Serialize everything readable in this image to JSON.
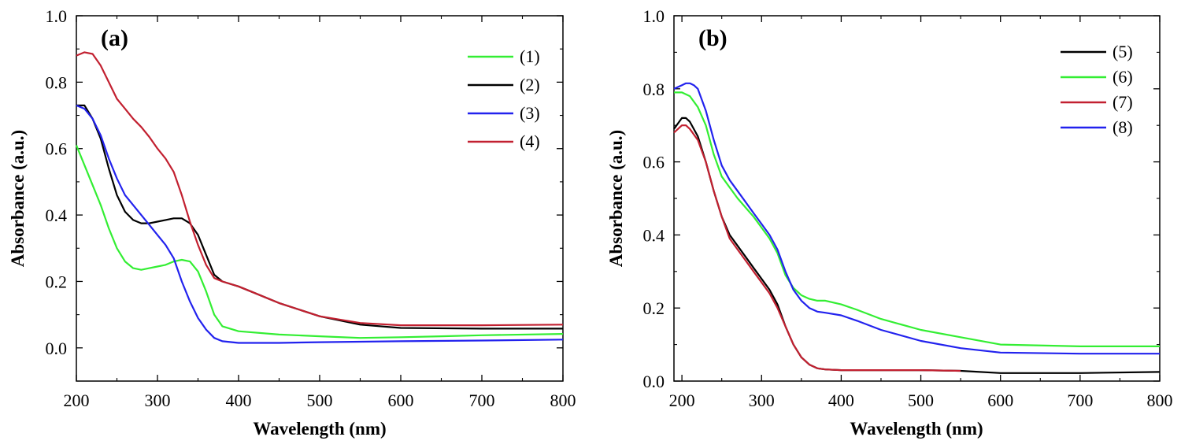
{
  "chart_data": [
    {
      "type": "line",
      "panel_label": "(a)",
      "xlabel": "Wavelength (nm)",
      "ylabel": "Absorbance (a.u.)",
      "xlim": [
        200,
        800
      ],
      "ylim": [
        -0.1,
        1.0
      ],
      "xticks": [
        "200",
        "300",
        "400",
        "500",
        "600",
        "700",
        "800"
      ],
      "yticks": [
        "0.0",
        "0.2",
        "0.4",
        "0.6",
        "0.8",
        "1.0"
      ],
      "legend_position": "top-right",
      "series": [
        {
          "name": "(1)",
          "color": "#33ee33",
          "x": [
            200,
            210,
            220,
            230,
            240,
            250,
            260,
            270,
            280,
            290,
            300,
            310,
            320,
            330,
            340,
            350,
            360,
            370,
            380,
            400,
            450,
            500,
            550,
            600,
            650,
            700,
            800
          ],
          "y": [
            0.61,
            0.55,
            0.49,
            0.43,
            0.36,
            0.3,
            0.26,
            0.24,
            0.235,
            0.24,
            0.245,
            0.25,
            0.26,
            0.265,
            0.26,
            0.23,
            0.17,
            0.1,
            0.065,
            0.05,
            0.04,
            0.035,
            0.03,
            0.032,
            0.035,
            0.038,
            0.042
          ]
        },
        {
          "name": "(2)",
          "color": "#000000",
          "x": [
            200,
            210,
            220,
            230,
            240,
            250,
            260,
            270,
            280,
            290,
            300,
            310,
            320,
            330,
            340,
            350,
            360,
            370,
            380,
            400,
            420,
            450,
            500,
            550,
            600,
            700,
            800
          ],
          "y": [
            0.73,
            0.73,
            0.69,
            0.63,
            0.54,
            0.46,
            0.41,
            0.385,
            0.375,
            0.375,
            0.38,
            0.385,
            0.39,
            0.39,
            0.375,
            0.34,
            0.28,
            0.22,
            0.2,
            0.185,
            0.165,
            0.135,
            0.095,
            0.07,
            0.06,
            0.058,
            0.058
          ]
        },
        {
          "name": "(3)",
          "color": "#2222ee",
          "x": [
            200,
            210,
            220,
            230,
            240,
            250,
            260,
            270,
            280,
            290,
            300,
            310,
            320,
            330,
            340,
            350,
            360,
            370,
            380,
            400,
            450,
            500,
            600,
            700,
            800
          ],
          "y": [
            0.73,
            0.72,
            0.69,
            0.64,
            0.57,
            0.51,
            0.46,
            0.43,
            0.4,
            0.37,
            0.34,
            0.31,
            0.27,
            0.2,
            0.14,
            0.09,
            0.055,
            0.03,
            0.02,
            0.015,
            0.015,
            0.017,
            0.02,
            0.022,
            0.025
          ]
        },
        {
          "name": "(4)",
          "color": "#c22030",
          "x": [
            200,
            205,
            210,
            220,
            230,
            240,
            250,
            260,
            270,
            280,
            290,
            300,
            310,
            320,
            330,
            340,
            350,
            360,
            370,
            380,
            400,
            420,
            450,
            500,
            550,
            600,
            700,
            800
          ],
          "y": [
            0.88,
            0.885,
            0.89,
            0.885,
            0.85,
            0.8,
            0.75,
            0.72,
            0.69,
            0.665,
            0.635,
            0.6,
            0.57,
            0.53,
            0.46,
            0.38,
            0.31,
            0.25,
            0.21,
            0.2,
            0.185,
            0.165,
            0.135,
            0.095,
            0.075,
            0.068,
            0.068,
            0.07
          ]
        }
      ]
    },
    {
      "type": "line",
      "panel_label": "(b)",
      "xlabel": "Wavelength (nm)",
      "ylabel": "Absorbance (a.u.)",
      "xlim": [
        190,
        800
      ],
      "ylim": [
        0.0,
        1.0
      ],
      "xticks": [
        "200",
        "300",
        "400",
        "500",
        "600",
        "700",
        "800"
      ],
      "yticks": [
        "0.0",
        "0.2",
        "0.4",
        "0.6",
        "0.8",
        "1.0"
      ],
      "legend_position": "top-right",
      "series": [
        {
          "name": "(5)",
          "color": "#000000",
          "x": [
            190,
            200,
            205,
            210,
            220,
            230,
            240,
            250,
            260,
            270,
            280,
            290,
            300,
            310,
            320,
            330,
            340,
            350,
            360,
            370,
            380,
            400,
            450,
            500,
            550,
            600,
            700,
            800
          ],
          "y": [
            0.69,
            0.72,
            0.72,
            0.71,
            0.67,
            0.6,
            0.52,
            0.45,
            0.4,
            0.37,
            0.34,
            0.31,
            0.28,
            0.25,
            0.21,
            0.15,
            0.1,
            0.065,
            0.045,
            0.035,
            0.032,
            0.03,
            0.03,
            0.03,
            0.028,
            0.022,
            0.022,
            0.025
          ]
        },
        {
          "name": "(6)",
          "color": "#33ee33",
          "x": [
            190,
            200,
            210,
            220,
            230,
            240,
            250,
            260,
            270,
            280,
            290,
            300,
            310,
            320,
            330,
            340,
            350,
            360,
            370,
            380,
            400,
            420,
            450,
            500,
            550,
            600,
            700,
            800
          ],
          "y": [
            0.79,
            0.79,
            0.78,
            0.75,
            0.7,
            0.62,
            0.56,
            0.53,
            0.5,
            0.475,
            0.45,
            0.42,
            0.39,
            0.35,
            0.29,
            0.255,
            0.235,
            0.225,
            0.22,
            0.22,
            0.21,
            0.195,
            0.17,
            0.14,
            0.12,
            0.1,
            0.095,
            0.095
          ]
        },
        {
          "name": "(7)",
          "color": "#c22030",
          "x": [
            190,
            200,
            205,
            210,
            220,
            230,
            240,
            250,
            260,
            270,
            280,
            290,
            300,
            310,
            320,
            330,
            340,
            350,
            360,
            370,
            380,
            400,
            450,
            500,
            550
          ],
          "y": [
            0.68,
            0.7,
            0.7,
            0.69,
            0.66,
            0.6,
            0.52,
            0.45,
            0.39,
            0.36,
            0.33,
            0.3,
            0.27,
            0.24,
            0.2,
            0.15,
            0.1,
            0.065,
            0.045,
            0.035,
            0.032,
            0.03,
            0.03,
            0.03,
            0.028
          ]
        },
        {
          "name": "(8)",
          "color": "#2222ee",
          "x": [
            190,
            200,
            205,
            210,
            215,
            220,
            230,
            240,
            250,
            260,
            270,
            280,
            290,
            300,
            310,
            320,
            330,
            340,
            350,
            360,
            370,
            380,
            400,
            420,
            450,
            500,
            550,
            600,
            700,
            800
          ],
          "y": [
            0.8,
            0.81,
            0.815,
            0.815,
            0.81,
            0.8,
            0.74,
            0.66,
            0.59,
            0.55,
            0.52,
            0.49,
            0.46,
            0.43,
            0.4,
            0.36,
            0.3,
            0.25,
            0.22,
            0.2,
            0.19,
            0.187,
            0.18,
            0.165,
            0.14,
            0.11,
            0.09,
            0.078,
            0.075,
            0.075
          ]
        }
      ]
    }
  ]
}
